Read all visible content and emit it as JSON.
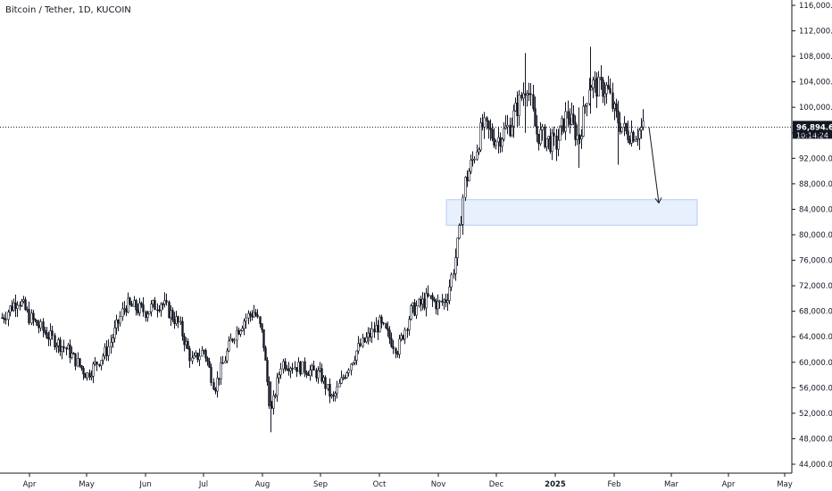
{
  "chart_data": {
    "type": "candlestick",
    "title": "Bitcoin / Tether, 1D, KUCOIN",
    "price_axis": {
      "ticks": [
        "116,000.0",
        "112,000.0",
        "108,000.0",
        "104,000.0",
        "100,000.0",
        "96,000.0",
        "92,000.0",
        "88,000.0",
        "84,000.0",
        "80,000.0",
        "76,000.0",
        "72,000.0",
        "68,000.0",
        "64,000.0",
        "60,000.0",
        "56,000.0",
        "52,000.0",
        "48,000.0",
        "44,000.0"
      ],
      "ylim": [
        43000,
        117000
      ]
    },
    "time_axis": {
      "ticks": [
        {
          "label": "Apr",
          "bold": false
        },
        {
          "label": "May",
          "bold": false
        },
        {
          "label": "Jun",
          "bold": false
        },
        {
          "label": "Jul",
          "bold": false
        },
        {
          "label": "Aug",
          "bold": false
        },
        {
          "label": "Sep",
          "bold": false
        },
        {
          "label": "Oct",
          "bold": false
        },
        {
          "label": "Nov",
          "bold": false
        },
        {
          "label": "Dec",
          "bold": false
        },
        {
          "label": "2025",
          "bold": true
        },
        {
          "label": "Feb",
          "bold": false
        },
        {
          "label": "Mar",
          "bold": false
        },
        {
          "label": "Apr",
          "bold": false
        },
        {
          "label": "May",
          "bold": false
        }
      ]
    },
    "last_price": {
      "value": 96894.6,
      "label": "96,894.6",
      "countdown": "10:14:24"
    },
    "series_monthly_closes": [
      {
        "month": "Apr",
        "close": 63000
      },
      {
        "month": "May",
        "close": 67500
      },
      {
        "month": "Jun",
        "close": 62700
      },
      {
        "month": "Jul",
        "close": 64600
      },
      {
        "month": "Aug",
        "close": 59000
      },
      {
        "month": "Sep",
        "close": 63300
      },
      {
        "month": "Oct",
        "close": 70200
      },
      {
        "month": "Nov",
        "close": 96400
      },
      {
        "month": "Dec",
        "close": 93400
      },
      {
        "month": "2025",
        "close": 102400
      },
      {
        "month": "Feb",
        "close": 96894.6
      }
    ],
    "range_high": 109500,
    "range_low": 49000,
    "support_zone": {
      "low": 81500,
      "high": 85500
    },
    "projection_target": 85000,
    "colors": {
      "up": "#131722",
      "down": "#131722",
      "zone_fill": "#e8f0fe",
      "zone_border": "#b8cdf0",
      "crosshair": "#131722",
      "label_bg": "#131722",
      "label_text": "#ffffff"
    }
  }
}
